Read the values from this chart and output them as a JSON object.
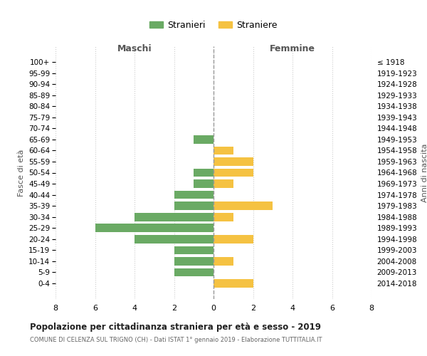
{
  "age_groups": [
    "100+",
    "95-99",
    "90-94",
    "85-89",
    "80-84",
    "75-79",
    "70-74",
    "65-69",
    "60-64",
    "55-59",
    "50-54",
    "45-49",
    "40-44",
    "35-39",
    "30-34",
    "25-29",
    "20-24",
    "15-19",
    "10-14",
    "5-9",
    "0-4"
  ],
  "birth_years": [
    "≤ 1918",
    "1919-1923",
    "1924-1928",
    "1929-1933",
    "1934-1938",
    "1939-1943",
    "1944-1948",
    "1949-1953",
    "1954-1958",
    "1959-1963",
    "1964-1968",
    "1969-1973",
    "1974-1978",
    "1979-1983",
    "1984-1988",
    "1989-1993",
    "1994-1998",
    "1999-2003",
    "2004-2008",
    "2009-2013",
    "2014-2018"
  ],
  "maschi": [
    0,
    0,
    0,
    0,
    0,
    0,
    0,
    1,
    0,
    0,
    1,
    1,
    2,
    2,
    4,
    6,
    4,
    2,
    2,
    2,
    0
  ],
  "femmine": [
    0,
    0,
    0,
    0,
    0,
    0,
    0,
    0,
    1,
    2,
    2,
    1,
    0,
    3,
    1,
    0,
    2,
    0,
    1,
    0,
    2
  ],
  "maschi_color": "#6aaa64",
  "femmine_color": "#f5c242",
  "xlim": 8,
  "title": "Popolazione per cittadinanza straniera per età e sesso - 2019",
  "subtitle": "COMUNE DI CELENZA SUL TRIGNO (CH) - Dati ISTAT 1° gennaio 2019 - Elaborazione TUTTITALIA.IT",
  "ylabel_left": "Fasce di età",
  "ylabel_right": "Anni di nascita",
  "xlabel_maschi": "Maschi",
  "xlabel_femmine": "Femmine",
  "legend_maschi": "Stranieri",
  "legend_femmine": "Straniere",
  "background_color": "#ffffff",
  "grid_color": "#cccccc",
  "bar_height": 0.75
}
